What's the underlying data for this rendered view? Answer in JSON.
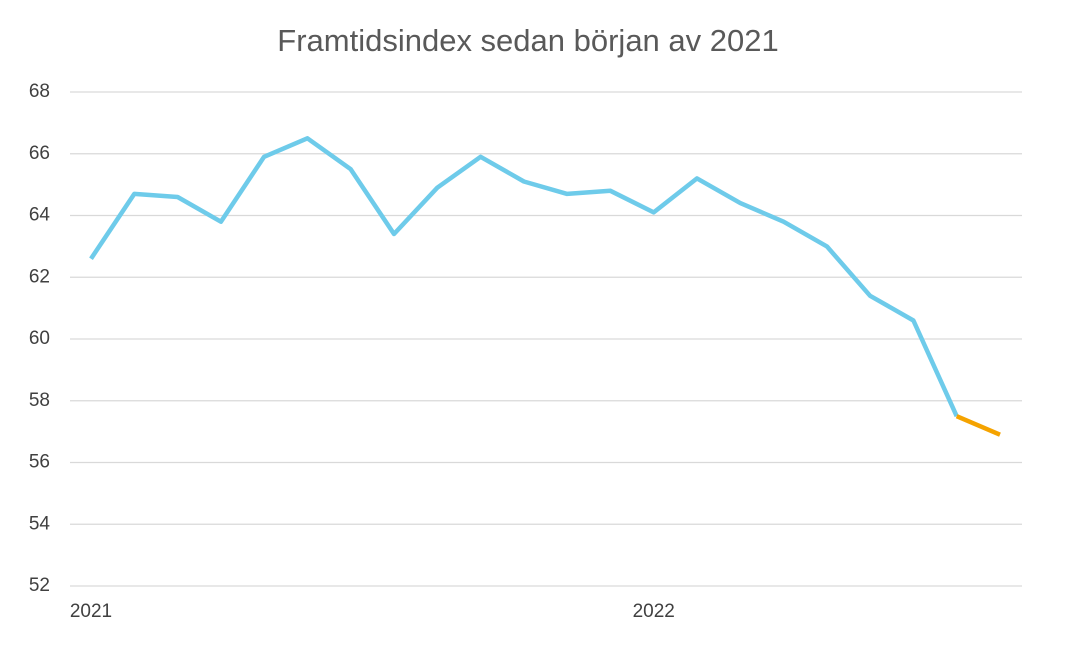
{
  "chart_data": {
    "type": "line",
    "title": "Framtidsindex sedan början av 2021",
    "categories": [
      "2021",
      null,
      null,
      null,
      null,
      null,
      null,
      null,
      null,
      null,
      null,
      null,
      null,
      "2022",
      null,
      null,
      null,
      null,
      null,
      null,
      null,
      null
    ],
    "series": [
      {
        "color": "#6ecbea",
        "values": [
          62.6,
          64.7,
          64.6,
          63.8,
          65.9,
          66.5,
          65.5,
          63.4,
          64.9,
          65.9,
          65.1,
          64.7,
          64.8,
          64.1,
          65.2,
          64.4,
          63.8,
          63.0,
          61.4,
          60.6,
          57.5,
          null
        ]
      },
      {
        "color": "#f5a300",
        "values": [
          null,
          null,
          null,
          null,
          null,
          null,
          null,
          null,
          null,
          null,
          null,
          null,
          null,
          null,
          null,
          null,
          null,
          null,
          null,
          null,
          57.5,
          56.9
        ]
      }
    ],
    "ylim": [
      52,
      68
    ],
    "yticks": [
      52,
      54,
      56,
      58,
      60,
      62,
      64,
      66,
      68
    ],
    "grid": true
  }
}
